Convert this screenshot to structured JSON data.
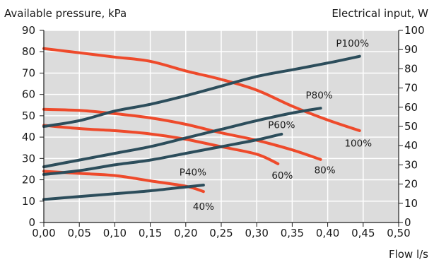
{
  "chart_data": {
    "type": "line",
    "title": "",
    "ylabel_left": "Available pressure, kPa",
    "ylabel_right": "Electrical input, W",
    "xlabel": "Flow l/s",
    "xlim": [
      0,
      0.5
    ],
    "ylim_left": [
      0,
      90
    ],
    "ylim_right": [
      0,
      100
    ],
    "x_ticks": [
      "0,00",
      "0,05",
      "0,10",
      "0,15",
      "0,20",
      "0,25",
      "0,30",
      "0,35",
      "0,40",
      "0,45",
      "0,50"
    ],
    "y_ticks_left": [
      "0",
      "10",
      "20",
      "30",
      "40",
      "50",
      "60",
      "70",
      "80",
      "90"
    ],
    "y_ticks_right": [
      "0",
      "10",
      "20",
      "30",
      "40",
      "50",
      "60",
      "70",
      "80",
      "90",
      "100"
    ],
    "grid": true,
    "colors": {
      "pressure": "#ee4a2b",
      "power": "#2c4d5b",
      "plot_bg": "#dcdcdc",
      "grid": "#ffffff"
    },
    "series": [
      {
        "name": "100%",
        "axis": "left",
        "group": "pressure",
        "points": [
          [
            0,
            81.5
          ],
          [
            0.05,
            79.5
          ],
          [
            0.1,
            77.5
          ],
          [
            0.15,
            75.5
          ],
          [
            0.2,
            71
          ],
          [
            0.25,
            67
          ],
          [
            0.3,
            62
          ],
          [
            0.35,
            54.5
          ],
          [
            0.4,
            48
          ],
          [
            0.445,
            43
          ]
        ]
      },
      {
        "name": "80%",
        "axis": "left",
        "group": "pressure",
        "points": [
          [
            0,
            53
          ],
          [
            0.05,
            52.5
          ],
          [
            0.1,
            51
          ],
          [
            0.15,
            49
          ],
          [
            0.2,
            46
          ],
          [
            0.25,
            42
          ],
          [
            0.3,
            38.5
          ],
          [
            0.35,
            34
          ],
          [
            0.39,
            29.5
          ]
        ]
      },
      {
        "name": "60%",
        "axis": "left",
        "group": "pressure",
        "points": [
          [
            0,
            45.5
          ],
          [
            0.05,
            44
          ],
          [
            0.1,
            43
          ],
          [
            0.15,
            41.5
          ],
          [
            0.2,
            39
          ],
          [
            0.25,
            35.5
          ],
          [
            0.3,
            32
          ],
          [
            0.33,
            27.5
          ]
        ]
      },
      {
        "name": "40%",
        "axis": "left",
        "group": "pressure",
        "points": [
          [
            0,
            24
          ],
          [
            0.05,
            23
          ],
          [
            0.1,
            22
          ],
          [
            0.15,
            19.5
          ],
          [
            0.2,
            17
          ],
          [
            0.225,
            14.5
          ]
        ]
      },
      {
        "name": "P100%",
        "axis": "right",
        "group": "power",
        "points": [
          [
            0,
            50
          ],
          [
            0.05,
            53
          ],
          [
            0.1,
            58
          ],
          [
            0.15,
            61.5
          ],
          [
            0.2,
            66
          ],
          [
            0.25,
            71
          ],
          [
            0.3,
            76
          ],
          [
            0.35,
            79.5
          ],
          [
            0.4,
            83
          ],
          [
            0.445,
            86.5
          ]
        ]
      },
      {
        "name": "P80%",
        "axis": "right",
        "group": "power",
        "points": [
          [
            0,
            29
          ],
          [
            0.05,
            32.5
          ],
          [
            0.1,
            36
          ],
          [
            0.15,
            39.5
          ],
          [
            0.2,
            44
          ],
          [
            0.25,
            48.5
          ],
          [
            0.3,
            53
          ],
          [
            0.35,
            57
          ],
          [
            0.39,
            59.5
          ]
        ]
      },
      {
        "name": "P60%",
        "axis": "right",
        "group": "power",
        "points": [
          [
            0,
            25
          ],
          [
            0.05,
            27
          ],
          [
            0.1,
            30
          ],
          [
            0.15,
            32.5
          ],
          [
            0.2,
            36
          ],
          [
            0.25,
            39.5
          ],
          [
            0.3,
            43
          ],
          [
            0.335,
            46
          ]
        ]
      },
      {
        "name": "P40%",
        "axis": "right",
        "group": "power",
        "points": [
          [
            0,
            12
          ],
          [
            0.05,
            13.5
          ],
          [
            0.1,
            15
          ],
          [
            0.15,
            16.5
          ],
          [
            0.2,
            18.5
          ],
          [
            0.225,
            19.5
          ]
        ]
      }
    ],
    "labels": [
      {
        "text": "P100%",
        "x": 0.435,
        "axis": "right",
        "y": 91.5
      },
      {
        "text": "P80%",
        "x": 0.388,
        "axis": "right",
        "y": 64.5
      },
      {
        "text": "P60%",
        "x": 0.335,
        "axis": "right",
        "y": 49
      },
      {
        "text": "P40%",
        "x": 0.21,
        "axis": "right",
        "y": 24.5
      },
      {
        "text": "100%",
        "x": 0.443,
        "axis": "left",
        "y": 35.5
      },
      {
        "text": "80%",
        "x": 0.396,
        "axis": "left",
        "y": 23
      },
      {
        "text": "60%",
        "x": 0.336,
        "axis": "left",
        "y": 20.5
      },
      {
        "text": "40%",
        "x": 0.225,
        "axis": "left",
        "y": 6
      }
    ]
  }
}
